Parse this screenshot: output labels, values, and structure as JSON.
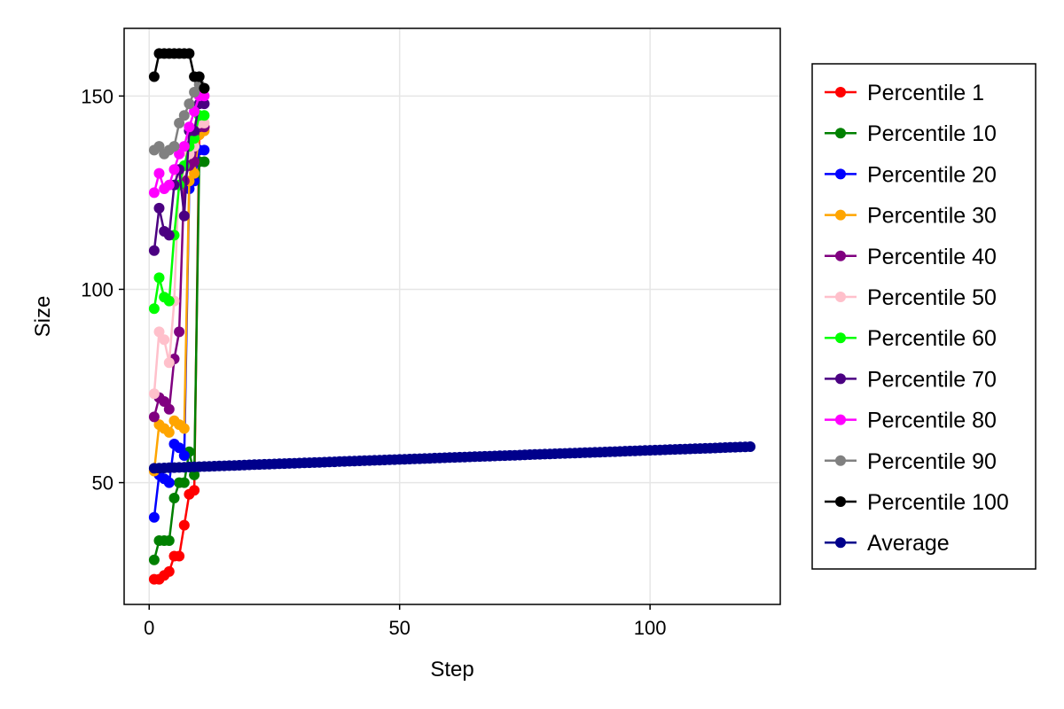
{
  "chart_data": {
    "type": "line",
    "title": "",
    "xlabel": "Step",
    "ylabel": "Size",
    "xlim": [
      -5,
      126
    ],
    "ylim": [
      18.5,
      167.5
    ],
    "xticks": [
      0,
      50,
      100
    ],
    "yticks": [
      50,
      100,
      150
    ],
    "grid": true,
    "legend_position": "right",
    "series": [
      {
        "name": "Percentile 1",
        "color": "#ff0000",
        "x": [
          1,
          2,
          3,
          4,
          5,
          6,
          7,
          8,
          9,
          10,
          11
        ],
        "y": [
          25,
          25,
          26,
          27,
          31,
          31,
          39,
          47,
          48,
          140,
          142
        ]
      },
      {
        "name": "Percentile 10",
        "color": "#008000",
        "x": [
          1,
          2,
          3,
          4,
          5,
          6,
          7,
          8,
          9,
          10,
          11
        ],
        "y": [
          30,
          35,
          35,
          35,
          46,
          50,
          50,
          58,
          52,
          133,
          133
        ]
      },
      {
        "name": "Percentile 20",
        "color": "#0000ff",
        "x": [
          1,
          2,
          3,
          4,
          5,
          6,
          7,
          8,
          9,
          10,
          11
        ],
        "y": [
          41,
          52,
          51,
          50,
          60,
          59,
          57,
          126,
          128,
          136,
          136
        ]
      },
      {
        "name": "Percentile 30",
        "color": "#ffa500",
        "x": [
          1,
          2,
          3,
          4,
          5,
          6,
          7,
          8,
          9,
          10,
          11
        ],
        "y": [
          53,
          65,
          64,
          63,
          66,
          65,
          64,
          128,
          130,
          140,
          141
        ]
      },
      {
        "name": "Percentile 40",
        "color": "#800080",
        "x": [
          1,
          2,
          3,
          4,
          5,
          6,
          7,
          8,
          9,
          10,
          11
        ],
        "y": [
          67,
          72,
          71,
          69,
          82,
          89,
          128,
          132,
          133,
          142,
          142
        ]
      },
      {
        "name": "Percentile 50",
        "color": "#ffc0cb",
        "x": [
          1,
          2,
          3,
          4,
          5,
          6,
          7,
          8,
          9,
          10,
          11
        ],
        "y": [
          73,
          89,
          87,
          81,
          97,
          130,
          132,
          135,
          137,
          143,
          143
        ]
      },
      {
        "name": "Percentile 60",
        "color": "#00ff00",
        "x": [
          1,
          2,
          3,
          4,
          5,
          6,
          7,
          8,
          9,
          10,
          11
        ],
        "y": [
          95,
          103,
          98,
          97,
          114,
          127,
          132,
          137,
          139,
          145,
          145
        ]
      },
      {
        "name": "Percentile 70",
        "color": "#4b0082",
        "x": [
          1,
          2,
          3,
          4,
          5,
          6,
          7,
          8,
          9,
          10,
          11
        ],
        "y": [
          110,
          121,
          115,
          114,
          127,
          131,
          119,
          141,
          141,
          148,
          148
        ]
      },
      {
        "name": "Percentile 80",
        "color": "#ff00ff",
        "x": [
          1,
          2,
          3,
          4,
          5,
          6,
          7,
          8,
          9,
          10,
          11
        ],
        "y": [
          125,
          130,
          126,
          127,
          131,
          135,
          137,
          142,
          146,
          150,
          150
        ]
      },
      {
        "name": "Percentile 90",
        "color": "#808080",
        "x": [
          1,
          2,
          3,
          4,
          5,
          6,
          7,
          8,
          9,
          10,
          11
        ],
        "y": [
          136,
          137,
          135,
          136,
          137,
          143,
          145,
          148,
          151,
          153,
          152
        ]
      },
      {
        "name": "Percentile 100",
        "color": "#000000",
        "x": [
          1,
          2,
          3,
          4,
          5,
          6,
          7,
          8,
          9,
          10,
          11
        ],
        "y": [
          155,
          161,
          161,
          161,
          161,
          161,
          161,
          161,
          155,
          155,
          152
        ]
      },
      {
        "name": "Average",
        "color": "#00008b",
        "x_start": 1,
        "x_end": 120,
        "y_start": 53.7,
        "y_end": 59.3
      }
    ]
  }
}
